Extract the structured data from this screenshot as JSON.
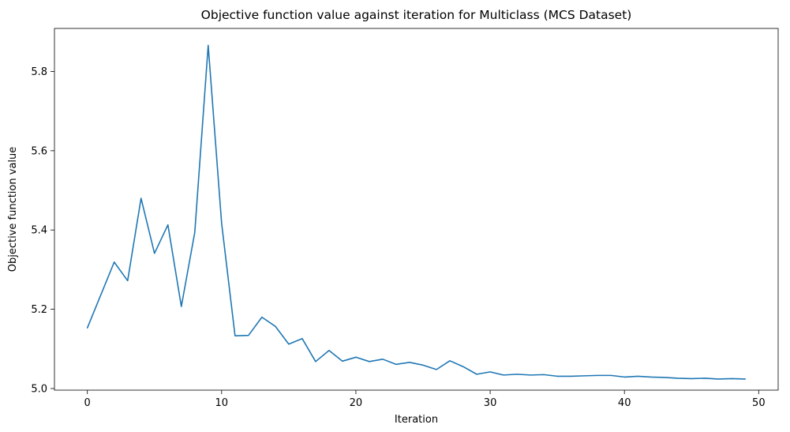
{
  "chart_data": {
    "type": "line",
    "title": "Objective function value against iteration for Multiclass (MCS Dataset)",
    "xlabel": "Iteration",
    "ylabel": "Objective function value",
    "xlim": [
      -2.45,
      51.45
    ],
    "ylim": [
      4.9959,
      5.9086
    ],
    "xticks": [
      0,
      10,
      20,
      30,
      40,
      50
    ],
    "yticks": [
      5.0,
      5.2,
      5.4,
      5.6,
      5.8
    ],
    "xtick_labels": [
      "0",
      "10",
      "20",
      "30",
      "40",
      "50"
    ],
    "ytick_labels": [
      "5.0",
      "5.2",
      "5.4",
      "5.6",
      "5.8"
    ],
    "grid": false,
    "line_color": "#1f77b4",
    "series": [
      {
        "x": [
          0,
          1,
          2,
          3,
          4,
          5,
          6,
          7,
          8,
          9,
          10,
          11,
          12,
          13,
          14,
          15,
          16,
          17,
          18,
          19,
          20,
          21,
          22,
          23,
          24,
          25,
          26,
          27,
          28,
          29,
          30,
          31,
          32,
          33,
          34,
          35,
          36,
          37,
          38,
          39,
          40,
          41,
          42,
          43,
          44,
          45,
          46,
          47,
          48,
          49
        ],
        "values": [
          5.153,
          5.236,
          5.319,
          5.272,
          5.48,
          5.341,
          5.413,
          5.207,
          5.394,
          5.866,
          5.417,
          5.133,
          5.134,
          5.18,
          5.157,
          5.112,
          5.126,
          5.068,
          5.096,
          5.069,
          5.079,
          5.068,
          5.074,
          5.061,
          5.066,
          5.059,
          5.048,
          5.07,
          5.055,
          5.036,
          5.042,
          5.034,
          5.036,
          5.034,
          5.035,
          5.031,
          5.031,
          5.032,
          5.033,
          5.033,
          5.029,
          5.031,
          5.029,
          5.028,
          5.026,
          5.025,
          5.026,
          5.024,
          5.025,
          5.024
        ]
      }
    ]
  }
}
